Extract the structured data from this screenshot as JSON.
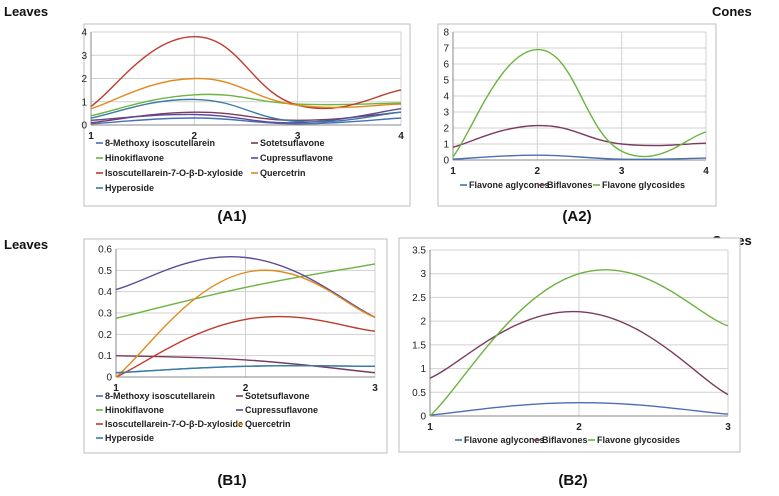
{
  "chart_data": [
    {
      "id": "A1",
      "type": "line",
      "side_label": "Leaves",
      "caption": "(A1)",
      "x": [
        1,
        2,
        3,
        4
      ],
      "xlim": [
        1,
        4
      ],
      "ylim": [
        0,
        4
      ],
      "xticks": [
        "1",
        "2",
        "3",
        "4"
      ],
      "yticks": [
        "0",
        "1",
        "2",
        "3",
        "4"
      ],
      "series": [
        {
          "name": "8-Methoxy isoscutellarein",
          "color": "#4a6fb5",
          "values": [
            0.05,
            0.3,
            0.05,
            0.3
          ]
        },
        {
          "name": "Sotetsuflavone",
          "color": "#7a3b5e",
          "values": [
            0.1,
            0.55,
            0.2,
            0.55
          ]
        },
        {
          "name": "Hinokiflavone",
          "color": "#6cb33f",
          "values": [
            0.4,
            1.3,
            0.9,
            0.95
          ]
        },
        {
          "name": "Cupressuflavone",
          "color": "#5b4a9a",
          "values": [
            0.2,
            0.45,
            0.1,
            0.7
          ]
        },
        {
          "name": "Isoscutellarein-7-O-β-D-xyloside",
          "color": "#c0392b",
          "values": [
            0.8,
            3.8,
            0.85,
            1.5
          ]
        },
        {
          "name": "Quercetrin",
          "color": "#e08a1e",
          "values": [
            0.7,
            2.0,
            0.85,
            0.9
          ]
        },
        {
          "name": "Hyperoside",
          "color": "#3a7ca5",
          "values": [
            0.3,
            1.1,
            0.15,
            0.55
          ]
        }
      ]
    },
    {
      "id": "A2",
      "type": "line",
      "side_label": "Cones",
      "caption": "(A2)",
      "x": [
        1,
        2,
        3,
        4
      ],
      "xlim": [
        1,
        4
      ],
      "ylim": [
        0,
        8
      ],
      "xticks": [
        "1",
        "2",
        "3",
        "4"
      ],
      "yticks": [
        "0",
        "1",
        "2",
        "3",
        "4",
        "5",
        "6",
        "7",
        "8"
      ],
      "series": [
        {
          "name": "Flavone aglycones",
          "color": "#4a6fb5",
          "values": [
            0.05,
            0.3,
            0.05,
            0.12
          ]
        },
        {
          "name": "Biflavones",
          "color": "#7a3b5e",
          "values": [
            0.8,
            2.15,
            1.0,
            1.05
          ]
        },
        {
          "name": "Flavone glycosides",
          "color": "#6cb33f",
          "values": [
            0.2,
            6.9,
            0.55,
            1.75
          ]
        }
      ]
    },
    {
      "id": "B1",
      "type": "line",
      "side_label": "Leaves",
      "caption": "(B1)",
      "x": [
        1,
        2,
        3
      ],
      "xlim": [
        1,
        3
      ],
      "ylim": [
        0,
        0.6
      ],
      "xticks": [
        "1",
        "2",
        "3"
      ],
      "yticks": [
        "0",
        "0.1",
        "0.2",
        "0.3",
        "0.4",
        "0.5",
        "0.6"
      ],
      "series": [
        {
          "name": "8-Methoxy isoscutellarein",
          "color": "#4a6fb5",
          "values": [
            0.02,
            0.05,
            0.05
          ]
        },
        {
          "name": "Sotetsuflavone",
          "color": "#7a3b5e",
          "values": [
            0.1,
            0.08,
            0.02
          ]
        },
        {
          "name": "Hinokiflavone",
          "color": "#6cb33f",
          "values": [
            0.275,
            0.42,
            0.53
          ]
        },
        {
          "name": "Cupressuflavone",
          "color": "#5b4a9a",
          "values": [
            0.41,
            0.56,
            0.28
          ]
        },
        {
          "name": "Isoscutellarein-7-O-β-D-xyloside",
          "color": "#c0392b",
          "values": [
            0.0,
            0.27,
            0.215
          ]
        },
        {
          "name": "Quercetrin",
          "color": "#e08a1e",
          "values": [
            0.0,
            0.49,
            0.28
          ]
        },
        {
          "name": "Hyperoside",
          "color": "#3a7ca5",
          "values": [
            0.02,
            0.05,
            0.05
          ]
        }
      ]
    },
    {
      "id": "B2",
      "type": "line",
      "side_label": "Cones",
      "caption": "(B2)",
      "x": [
        1,
        2,
        3
      ],
      "xlim": [
        1,
        3
      ],
      "ylim": [
        0,
        3.5
      ],
      "xticks": [
        "1",
        "2",
        "3"
      ],
      "yticks": [
        "0",
        "0.5",
        "1",
        "1.5",
        "2",
        "2.5",
        "3",
        "3.5"
      ],
      "series": [
        {
          "name": "Flavone aglycones",
          "color": "#4a6fb5",
          "values": [
            0.02,
            0.28,
            0.04
          ]
        },
        {
          "name": "Biflavones",
          "color": "#7a3b5e",
          "values": [
            0.8,
            2.2,
            0.45
          ]
        },
        {
          "name": "Flavone glycosides",
          "color": "#6cb33f",
          "values": [
            0.0,
            3.0,
            1.9
          ]
        }
      ]
    }
  ]
}
